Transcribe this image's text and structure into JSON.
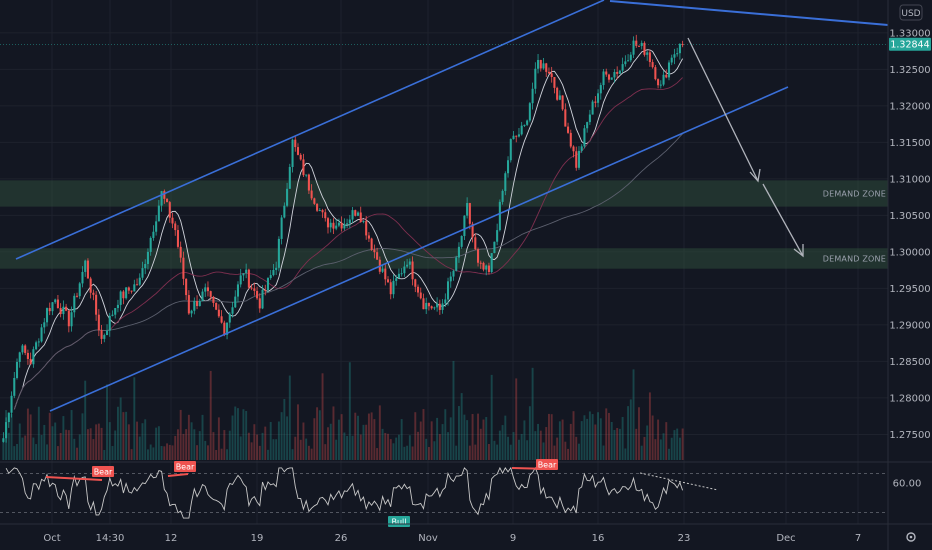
{
  "chart_data": {
    "type": "candlestick",
    "currency": "USD",
    "colors": {
      "up": "#26a69a",
      "down": "#ef5350",
      "channel": "#3a6fd8",
      "projection": "#b0b3bb",
      "zone": "#2e4a3a",
      "rsi": "#c8c8c8",
      "ma_fast": "#d1d4dc",
      "ma_mid": "#7e2f4f",
      "ma_slow": "#5b5f6d",
      "bear_tag": "#ef5350",
      "bull_tag": "#26a69a",
      "price_tag": "#26a69a"
    },
    "x_labels": [
      "Oct",
      "14:30",
      "12",
      "19",
      "26",
      "Nov",
      "9",
      "16",
      "23",
      "Dec",
      "7"
    ],
    "price_axis": {
      "ticks": [
        "1.33000",
        "1.32500",
        "1.32000",
        "1.31500",
        "1.31000",
        "1.30500",
        "1.30000",
        "1.29500",
        "1.29000",
        "1.28500",
        "1.28000",
        "1.27500"
      ],
      "range": [
        1.2715,
        1.3345
      ]
    },
    "last_price": "1.32844",
    "rsi": {
      "tick": "60.00",
      "range": [
        20,
        80
      ],
      "upper_band": 70,
      "lower_band": 30
    },
    "zones": [
      {
        "label": "DEMAND ZONE",
        "low": 1.3062,
        "high": 1.3098
      },
      {
        "label": "DEMAND ZONE",
        "low": 1.2977,
        "high": 1.3005
      }
    ],
    "divergence_tags": [
      {
        "label": "Bear",
        "kind": "bear"
      },
      {
        "label": "Bear",
        "kind": "bear"
      },
      {
        "label": "Bull",
        "kind": "bull"
      },
      {
        "label": "Bear",
        "kind": "bear"
      }
    ],
    "ohlc_summary": {
      "start": 1.2745,
      "channel_top_touch": 1.3158,
      "low_nov": 1.2902,
      "high_nov_10": 1.327,
      "dip_nov_13": 1.3118,
      "high_nov_19": 1.33,
      "close": 1.32844
    }
  }
}
